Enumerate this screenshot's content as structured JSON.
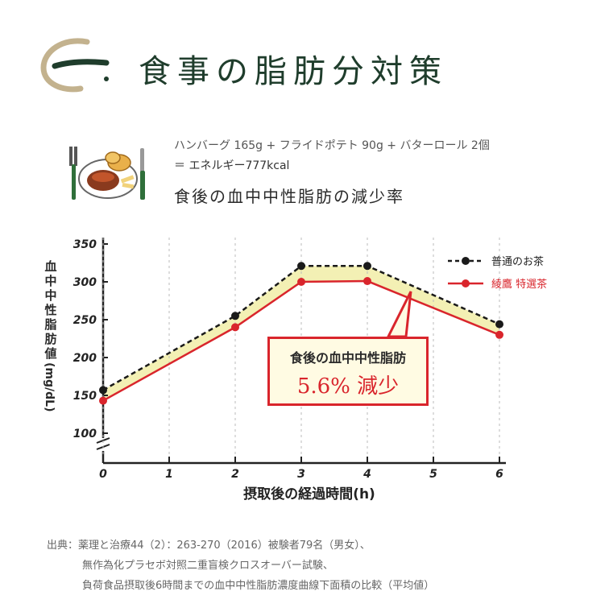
{
  "header": {
    "title": "食事の脂肪分対策"
  },
  "meal": {
    "line1": "ハンバーグ 165g + フライドポテト 90g + バターロール 2個",
    "line2": "＝ エネルギー777kcal",
    "subtitle": "食後の血中中性脂肪の減少率"
  },
  "callout": {
    "line1": "食後の血中中性脂肪",
    "line2": "5.6% 減少"
  },
  "source": {
    "line1": "出典：薬理と治療44（2）：263-270（2016）被験者79名（男女）、",
    "line2": "無作為化プラセボ対照二重盲検クロスオーバー試験、",
    "line3": "負荷食品摂取後6時間までの血中中性脂肪濃度曲線下面積の比較（平均値）"
  },
  "colors": {
    "brand_green": "#1f3d2c",
    "series_black": "#1a1a1a",
    "series_red": "#d9252c",
    "fill_yellow": "#f3f0b4"
  },
  "chart_data": {
    "type": "line",
    "x": [
      0,
      2,
      3,
      4,
      6
    ],
    "xticks": [
      "0",
      "1",
      "2",
      "3",
      "4",
      "5",
      "6"
    ],
    "yticks": [
      "100",
      "150",
      "200",
      "250",
      "300",
      "350"
    ],
    "ylim": [
      100,
      350
    ],
    "xlim": [
      0,
      6
    ],
    "xlabel": "摂取後の経過時間(h)",
    "ylabel": "血中中性脂肪値",
    "yunit": "(mg/dL)",
    "axis_break": true,
    "legend_position": "top-right",
    "series": [
      {
        "name": "普通のお茶",
        "values": [
          157,
          255,
          321,
          321,
          244
        ],
        "style": "dashed",
        "color": "#1a1a1a"
      },
      {
        "name": "綾鷹 特選茶",
        "values": [
          143,
          240,
          300,
          301,
          230
        ],
        "style": "solid",
        "color": "#d9252c"
      }
    ]
  }
}
